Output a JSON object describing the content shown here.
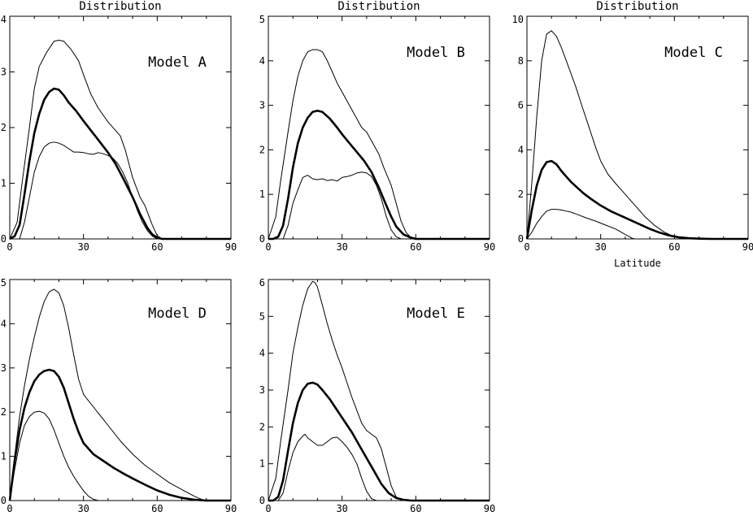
{
  "chart_data": [
    {
      "type": "line",
      "title": "Distribution",
      "label": "Model A",
      "xlabel": "",
      "xlim": [
        0,
        90
      ],
      "ylim": [
        0,
        4
      ],
      "xticks": [
        "0",
        "30",
        "60",
        "90"
      ],
      "yticks": [
        "0",
        "1",
        "2",
        "3",
        "4"
      ],
      "series": [
        {
          "style": "thin",
          "x": [
            0,
            3,
            5,
            8,
            10,
            12,
            15,
            18,
            20,
            22,
            25,
            28,
            30,
            33,
            36,
            40,
            43,
            45,
            47,
            50,
            53,
            55,
            58,
            60,
            62,
            63,
            65,
            70,
            80,
            90
          ],
          "y": [
            0,
            0.3,
            1.0,
            2.0,
            2.7,
            3.1,
            3.35,
            3.55,
            3.57,
            3.55,
            3.4,
            3.2,
            2.95,
            2.6,
            2.35,
            2.1,
            1.95,
            1.85,
            1.6,
            1.1,
            0.75,
            0.6,
            0.25,
            0.06,
            0,
            0,
            0,
            0,
            0,
            0
          ]
        },
        {
          "style": "thick",
          "x": [
            0,
            2,
            4,
            6,
            8,
            10,
            12,
            14,
            16,
            18,
            20,
            22,
            24,
            27,
            30,
            33,
            36,
            40,
            43,
            46,
            50,
            53,
            56,
            58,
            60,
            62,
            65,
            70,
            80,
            90
          ],
          "y": [
            0,
            0.05,
            0.25,
            0.8,
            1.4,
            1.9,
            2.25,
            2.5,
            2.64,
            2.7,
            2.68,
            2.58,
            2.45,
            2.3,
            2.12,
            1.95,
            1.78,
            1.55,
            1.35,
            1.1,
            0.75,
            0.45,
            0.2,
            0.08,
            0.02,
            0,
            0,
            0,
            0,
            0
          ]
        },
        {
          "style": "thin",
          "x": [
            0,
            4,
            6,
            8,
            10,
            12,
            14,
            16,
            18,
            20,
            22,
            24,
            26,
            28,
            30,
            32,
            34,
            36,
            38,
            40,
            42,
            44,
            46,
            48,
            50,
            52,
            54,
            56,
            58,
            60,
            90
          ],
          "y": [
            0,
            0,
            0.3,
            0.75,
            1.2,
            1.48,
            1.65,
            1.72,
            1.74,
            1.72,
            1.68,
            1.62,
            1.56,
            1.56,
            1.55,
            1.53,
            1.52,
            1.55,
            1.53,
            1.5,
            1.45,
            1.35,
            1.2,
            1.0,
            0.75,
            0.5,
            0.3,
            0.15,
            0.05,
            0,
            0
          ]
        }
      ]
    },
    {
      "type": "line",
      "title": "Distribution",
      "label": "Model B",
      "xlabel": "",
      "xlim": [
        0,
        90
      ],
      "ylim": [
        0,
        5
      ],
      "xticks": [
        "0",
        "30",
        "60",
        "90"
      ],
      "yticks": [
        "0",
        "1",
        "2",
        "3",
        "4",
        "5"
      ],
      "series": [
        {
          "style": "thin",
          "x": [
            0,
            3,
            5,
            8,
            10,
            12,
            14,
            16,
            18,
            20,
            22,
            24,
            26,
            28,
            30,
            32,
            35,
            38,
            40,
            42,
            45,
            47,
            50,
            52,
            54,
            56,
            58,
            60,
            90
          ],
          "y": [
            0,
            0.5,
            1.3,
            2.4,
            3.1,
            3.65,
            4.0,
            4.2,
            4.25,
            4.25,
            4.2,
            4.0,
            3.75,
            3.5,
            3.3,
            3.1,
            2.8,
            2.5,
            2.4,
            2.2,
            1.9,
            1.6,
            1.2,
            0.8,
            0.4,
            0.15,
            0.03,
            0,
            0
          ]
        },
        {
          "style": "thick",
          "x": [
            0,
            2,
            4,
            6,
            8,
            10,
            12,
            14,
            16,
            18,
            20,
            22,
            25,
            28,
            30,
            33,
            36,
            39,
            42,
            45,
            48,
            50,
            52,
            55,
            58,
            60,
            65,
            90
          ],
          "y": [
            0,
            0,
            0.05,
            0.3,
            0.9,
            1.6,
            2.15,
            2.5,
            2.72,
            2.85,
            2.88,
            2.85,
            2.7,
            2.5,
            2.35,
            2.15,
            1.95,
            1.75,
            1.5,
            1.15,
            0.75,
            0.5,
            0.28,
            0.1,
            0.03,
            0,
            0,
            0
          ]
        },
        {
          "style": "thin",
          "x": [
            0,
            6,
            8,
            10,
            12,
            14,
            16,
            18,
            20,
            22,
            24,
            26,
            28,
            30,
            32,
            34,
            36,
            38,
            40,
            42,
            44,
            46,
            48,
            50,
            52,
            54,
            90
          ],
          "y": [
            0,
            0,
            0.3,
            0.8,
            1.1,
            1.38,
            1.43,
            1.35,
            1.33,
            1.35,
            1.31,
            1.33,
            1.3,
            1.38,
            1.4,
            1.43,
            1.48,
            1.5,
            1.48,
            1.4,
            1.2,
            0.9,
            0.5,
            0.2,
            0.05,
            0,
            0
          ]
        }
      ]
    },
    {
      "type": "line",
      "title": "Distribution",
      "label": "Model C",
      "xlabel": "Latitude",
      "xlim": [
        0,
        90
      ],
      "ylim": [
        0,
        10
      ],
      "xticks": [
        "0",
        "30",
        "60",
        "90"
      ],
      "yticks": [
        "0",
        "2",
        "4",
        "6",
        "8",
        "10"
      ],
      "series": [
        {
          "style": "thin",
          "x": [
            0,
            2,
            4,
            6,
            8,
            10,
            12,
            14,
            16,
            18,
            20,
            22,
            25,
            28,
            30,
            33,
            36,
            40,
            44,
            48,
            52,
            56,
            60,
            62,
            65,
            70,
            90
          ],
          "y": [
            0,
            2.5,
            5.5,
            8.0,
            9.2,
            9.35,
            9.1,
            8.6,
            8.0,
            7.4,
            6.8,
            6.1,
            5.1,
            4.1,
            3.5,
            2.9,
            2.5,
            2.0,
            1.5,
            1.0,
            0.6,
            0.3,
            0.1,
            0.05,
            0,
            0,
            0
          ]
        },
        {
          "style": "thick",
          "x": [
            0,
            2,
            4,
            6,
            8,
            10,
            12,
            14,
            16,
            18,
            20,
            23,
            26,
            30,
            34,
            38,
            42,
            46,
            50,
            54,
            58,
            62,
            66,
            70,
            75,
            80,
            90
          ],
          "y": [
            0,
            1.3,
            2.4,
            3.1,
            3.45,
            3.5,
            3.35,
            3.05,
            2.8,
            2.55,
            2.35,
            2.05,
            1.8,
            1.5,
            1.25,
            1.05,
            0.85,
            0.65,
            0.45,
            0.28,
            0.15,
            0.07,
            0.03,
            0.01,
            0,
            0,
            0
          ]
        },
        {
          "style": "thin",
          "x": [
            0,
            2,
            4,
            6,
            8,
            10,
            12,
            14,
            16,
            18,
            20,
            24,
            28,
            32,
            36,
            40,
            42,
            43,
            44,
            46,
            90
          ],
          "y": [
            0,
            0.3,
            0.7,
            1.0,
            1.25,
            1.33,
            1.33,
            1.3,
            1.25,
            1.2,
            1.12,
            0.95,
            0.8,
            0.62,
            0.45,
            0.2,
            0.08,
            0.02,
            0,
            0,
            0
          ]
        }
      ]
    },
    {
      "type": "line",
      "title": "",
      "label": "Model D",
      "xlabel": "",
      "xlim": [
        0,
        90
      ],
      "ylim": [
        0,
        5
      ],
      "xticks": [
        "0",
        "30",
        "60",
        "90"
      ],
      "yticks": [
        "0",
        "1",
        "2",
        "3",
        "4",
        "5"
      ],
      "series": [
        {
          "style": "thin",
          "x": [
            0,
            2,
            4,
            6,
            8,
            10,
            12,
            14,
            16,
            18,
            20,
            22,
            24,
            26,
            28,
            30,
            35,
            40,
            45,
            50,
            55,
            60,
            65,
            70,
            75,
            78,
            80,
            90
          ],
          "y": [
            0,
            1.0,
            1.9,
            2.6,
            3.2,
            3.7,
            4.15,
            4.5,
            4.72,
            4.78,
            4.7,
            4.4,
            3.9,
            3.3,
            2.75,
            2.4,
            2.05,
            1.7,
            1.35,
            1.05,
            0.8,
            0.6,
            0.4,
            0.25,
            0.1,
            0.03,
            0,
            0
          ]
        },
        {
          "style": "thick",
          "x": [
            0,
            2,
            4,
            6,
            8,
            10,
            12,
            14,
            16,
            18,
            20,
            22,
            24,
            26,
            28,
            30,
            34,
            38,
            42,
            46,
            50,
            55,
            60,
            65,
            70,
            75,
            80,
            90
          ],
          "y": [
            0,
            0.9,
            1.6,
            2.1,
            2.45,
            2.7,
            2.85,
            2.93,
            2.96,
            2.93,
            2.8,
            2.55,
            2.2,
            1.85,
            1.55,
            1.3,
            1.05,
            0.9,
            0.75,
            0.62,
            0.5,
            0.36,
            0.23,
            0.13,
            0.06,
            0.02,
            0,
            0
          ]
        },
        {
          "style": "thin",
          "x": [
            0,
            2,
            4,
            6,
            8,
            10,
            12,
            14,
            16,
            18,
            20,
            22,
            24,
            26,
            28,
            30,
            32,
            34,
            36,
            38,
            40,
            90
          ],
          "y": [
            0,
            0.7,
            1.3,
            1.7,
            1.9,
            2.0,
            2.02,
            1.98,
            1.85,
            1.6,
            1.3,
            1.0,
            0.75,
            0.55,
            0.38,
            0.22,
            0.1,
            0.03,
            0,
            0,
            0,
            0
          ]
        }
      ]
    },
    {
      "type": "line",
      "title": "",
      "label": "Model E",
      "xlabel": "",
      "xlim": [
        0,
        90
      ],
      "ylim": [
        0,
        6
      ],
      "xticks": [
        "0",
        "30",
        "60",
        "90"
      ],
      "yticks": [
        "0",
        "1",
        "2",
        "3",
        "4",
        "5",
        "6"
      ],
      "series": [
        {
          "style": "thin",
          "x": [
            0,
            3,
            5,
            8,
            10,
            12,
            14,
            16,
            18,
            19,
            20,
            22,
            24,
            26,
            28,
            30,
            32,
            34,
            36,
            38,
            40,
            42,
            44,
            46,
            48,
            50,
            52,
            54,
            56,
            90
          ],
          "y": [
            0,
            0.6,
            1.6,
            3.0,
            4.0,
            4.7,
            5.3,
            5.75,
            5.95,
            5.92,
            5.8,
            5.3,
            4.8,
            4.35,
            3.95,
            3.6,
            3.2,
            2.8,
            2.45,
            2.1,
            1.9,
            1.8,
            1.7,
            1.4,
            0.9,
            0.4,
            0.1,
            0.02,
            0,
            0
          ]
        },
        {
          "style": "thick",
          "x": [
            0,
            2,
            4,
            6,
            8,
            10,
            12,
            14,
            16,
            18,
            20,
            22,
            25,
            28,
            31,
            34,
            37,
            40,
            43,
            46,
            49,
            52,
            55,
            58,
            62,
            65,
            90
          ],
          "y": [
            0,
            0,
            0.1,
            0.55,
            1.35,
            2.1,
            2.65,
            3.0,
            3.17,
            3.2,
            3.15,
            3.0,
            2.75,
            2.45,
            2.15,
            1.85,
            1.5,
            1.15,
            0.8,
            0.45,
            0.2,
            0.07,
            0.02,
            0,
            0,
            0,
            0
          ]
        },
        {
          "style": "thin",
          "x": [
            0,
            4,
            6,
            8,
            10,
            12,
            14,
            15,
            16,
            18,
            20,
            22,
            24,
            26,
            28,
            30,
            32,
            34,
            36,
            38,
            40,
            42,
            44,
            90
          ],
          "y": [
            0,
            0,
            0.2,
            0.8,
            1.3,
            1.6,
            1.75,
            1.8,
            1.7,
            1.6,
            1.5,
            1.5,
            1.6,
            1.7,
            1.72,
            1.6,
            1.45,
            1.25,
            1.0,
            0.6,
            0.25,
            0.05,
            0,
            0
          ]
        }
      ]
    }
  ]
}
